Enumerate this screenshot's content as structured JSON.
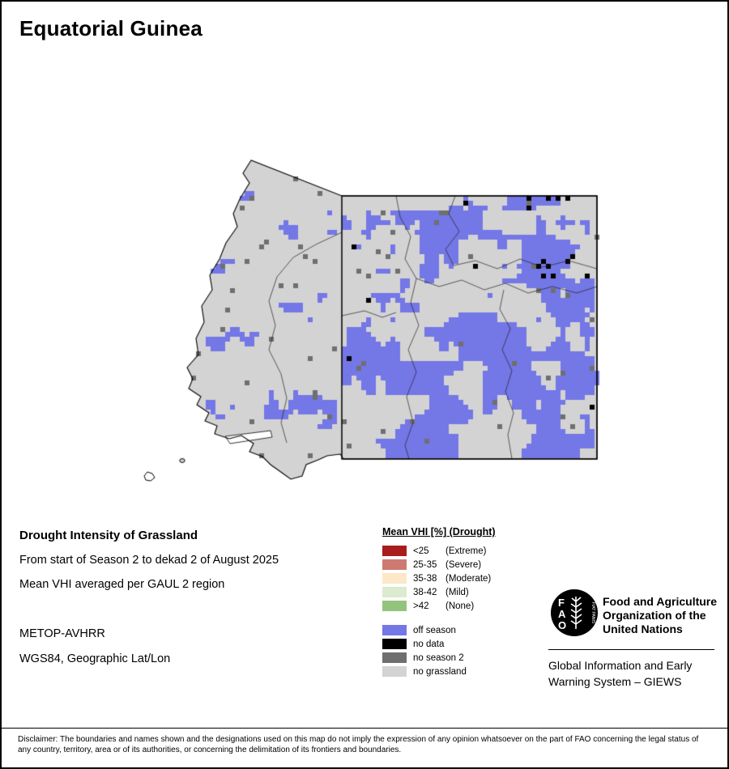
{
  "page": {
    "title": "Equatorial Guinea"
  },
  "info": {
    "heading": "Drought Intensity of Grassland",
    "period_line": "From start of Season 2 to dekad 2 of August 2025",
    "method_line": "Mean VHI averaged per GAUL 2 region",
    "sensor": "METOP-AVHRR",
    "projection": "WGS84, Geographic Lat/Lon"
  },
  "legend": {
    "title": "Mean VHI [%] (Drought)",
    "classes": [
      {
        "label": "<25",
        "desc": "(Extreme)",
        "color": "#a81c1c"
      },
      {
        "label": "25-35",
        "desc": "(Severe)",
        "color": "#cd7a72"
      },
      {
        "label": "35-38",
        "desc": "(Moderate)",
        "color": "#fce8c8"
      },
      {
        "label": "38-42",
        "desc": "(Mild)",
        "color": "#dcead0"
      },
      {
        "label": ">42",
        "desc": "(None)",
        "color": "#93c47d"
      }
    ],
    "extra": [
      {
        "label": "off season",
        "color": "#7477e6"
      },
      {
        "label": "no data",
        "color": "#000000"
      },
      {
        "label": "no season 2",
        "color": "#6f6f6f"
      },
      {
        "label": "no grassland",
        "color": "#d3d3d3"
      }
    ]
  },
  "branding": {
    "logo_letters": [
      "F",
      "A",
      "O"
    ],
    "logo_motto": "FIAT PANIS",
    "org_line1": "Food and Agriculture",
    "org_line2": "Organization of the",
    "org_line3": "United Nations",
    "giews_line1": "Global Information and Early",
    "giews_line2": "Warning System – GIEWS"
  },
  "footer": {
    "disclaimer": "Disclaimer: The boundaries and names shown and the designations used on this map do not imply the expression of any opinion whatsoever on the part of FAO concerning the legal status of any country, territory, area or of its authorities, or concerning the delimitation of its frontiers and boundaries."
  },
  "map": {
    "land_color": "#d3d3d3",
    "off_season_color": "#7477e6",
    "no_data_color": "#000000",
    "no_season2_color": "#6f6f6f",
    "cell": 6,
    "seed": 20250812
  }
}
